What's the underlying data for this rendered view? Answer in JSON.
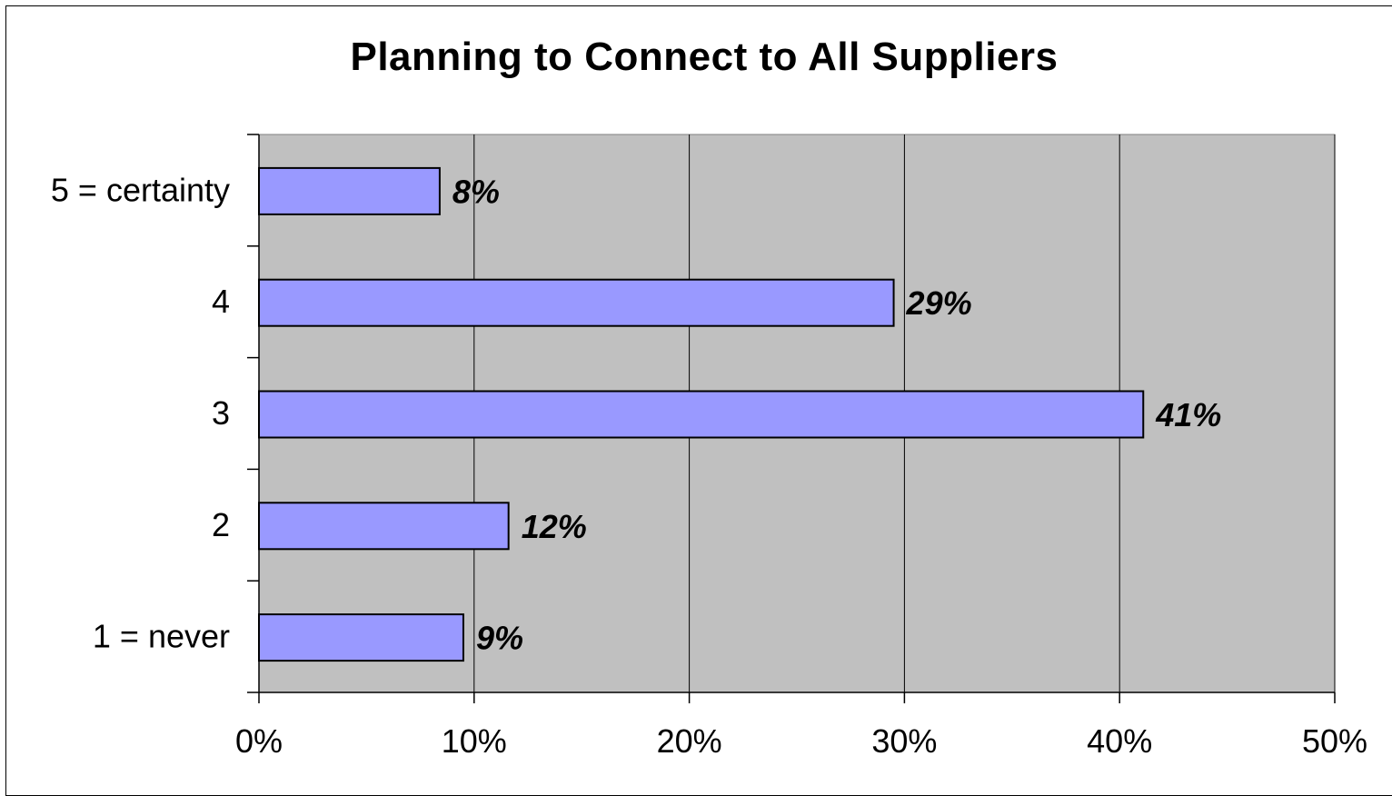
{
  "chart_data": {
    "type": "bar",
    "orientation": "horizontal",
    "title": "Planning to Connect to All Suppliers",
    "xlabel": "",
    "ylabel": "",
    "categories": [
      "5 = certainty",
      "4",
      "3",
      "2",
      "1 = never"
    ],
    "values": [
      8.4,
      29.5,
      41.1,
      11.6,
      9.5
    ],
    "data_labels": [
      "8%",
      "29%",
      "41%",
      "12%",
      "9%"
    ],
    "xlim": [
      0,
      50
    ],
    "x_ticks": [
      0,
      10,
      20,
      30,
      40,
      50
    ],
    "x_tick_labels": [
      "0%",
      "10%",
      "20%",
      "30%",
      "40%",
      "50%"
    ],
    "grid": "vertical",
    "legend": "none",
    "colors": {
      "bar_fill": "#9999ff",
      "bar_stroke": "#000000",
      "plot_background": "#c0c0c0",
      "gridline": "#000000"
    }
  }
}
